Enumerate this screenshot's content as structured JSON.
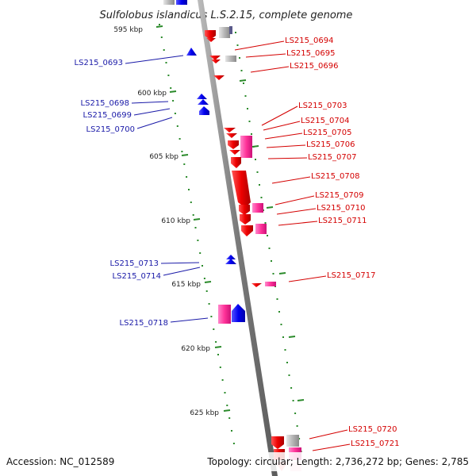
{
  "title": "Sulfolobus islandicus L.S.2.15, complete genome",
  "accession": "Accession: NC_012589",
  "topology": "Topology: circular; Length: 2,736,272 bp; Genes: 2,785",
  "ticks": [
    "595 kbp",
    "600 kbp",
    "605 kbp",
    "610 kbp",
    "615 kbp",
    "620 kbp",
    "625 kbp"
  ],
  "forward_genes": [
    "LS215_0693",
    "LS215_0698",
    "LS215_0699",
    "LS215_0700",
    "LS215_0713",
    "LS215_0714",
    "LS215_0718"
  ],
  "reverse_genes": [
    "LS215_0694",
    "LS215_0695",
    "LS215_0696",
    "LS215_0703",
    "LS215_0704",
    "LS215_0705",
    "LS215_0706",
    "LS215_0707",
    "LS215_0708",
    "LS215_0709",
    "LS215_0710",
    "LS215_0711",
    "LS215_0717",
    "LS215_0720",
    "LS215_0721"
  ],
  "colors": {
    "reverse_gene": "#ee0000",
    "forward_gene": "#0000ee",
    "rna": "#ff3399",
    "backbone": "#888888",
    "tick": "#2a8a2a"
  }
}
